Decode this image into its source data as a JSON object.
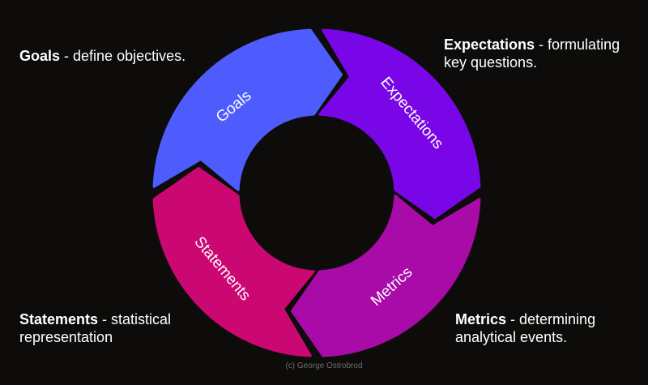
{
  "segments": [
    {
      "label": "Goals",
      "color": "#4f5cfd"
    },
    {
      "label": "Expectations",
      "color": "#7906e6"
    },
    {
      "label": "Metrics",
      "color": "#a80ba7"
    },
    {
      "label": "Statements",
      "color": "#cb0872"
    }
  ],
  "captions": {
    "goals": {
      "title": "Goals",
      "text": " - define objectives."
    },
    "expectations": {
      "title": "Expectations",
      "text": " - formulating key questions."
    },
    "statements": {
      "title": "Statements",
      "text": " - statistical representation"
    },
    "metrics": {
      "title": "Metrics",
      "text": " - determining analytical events."
    }
  },
  "credit": "(c) George Ostrobrod"
}
